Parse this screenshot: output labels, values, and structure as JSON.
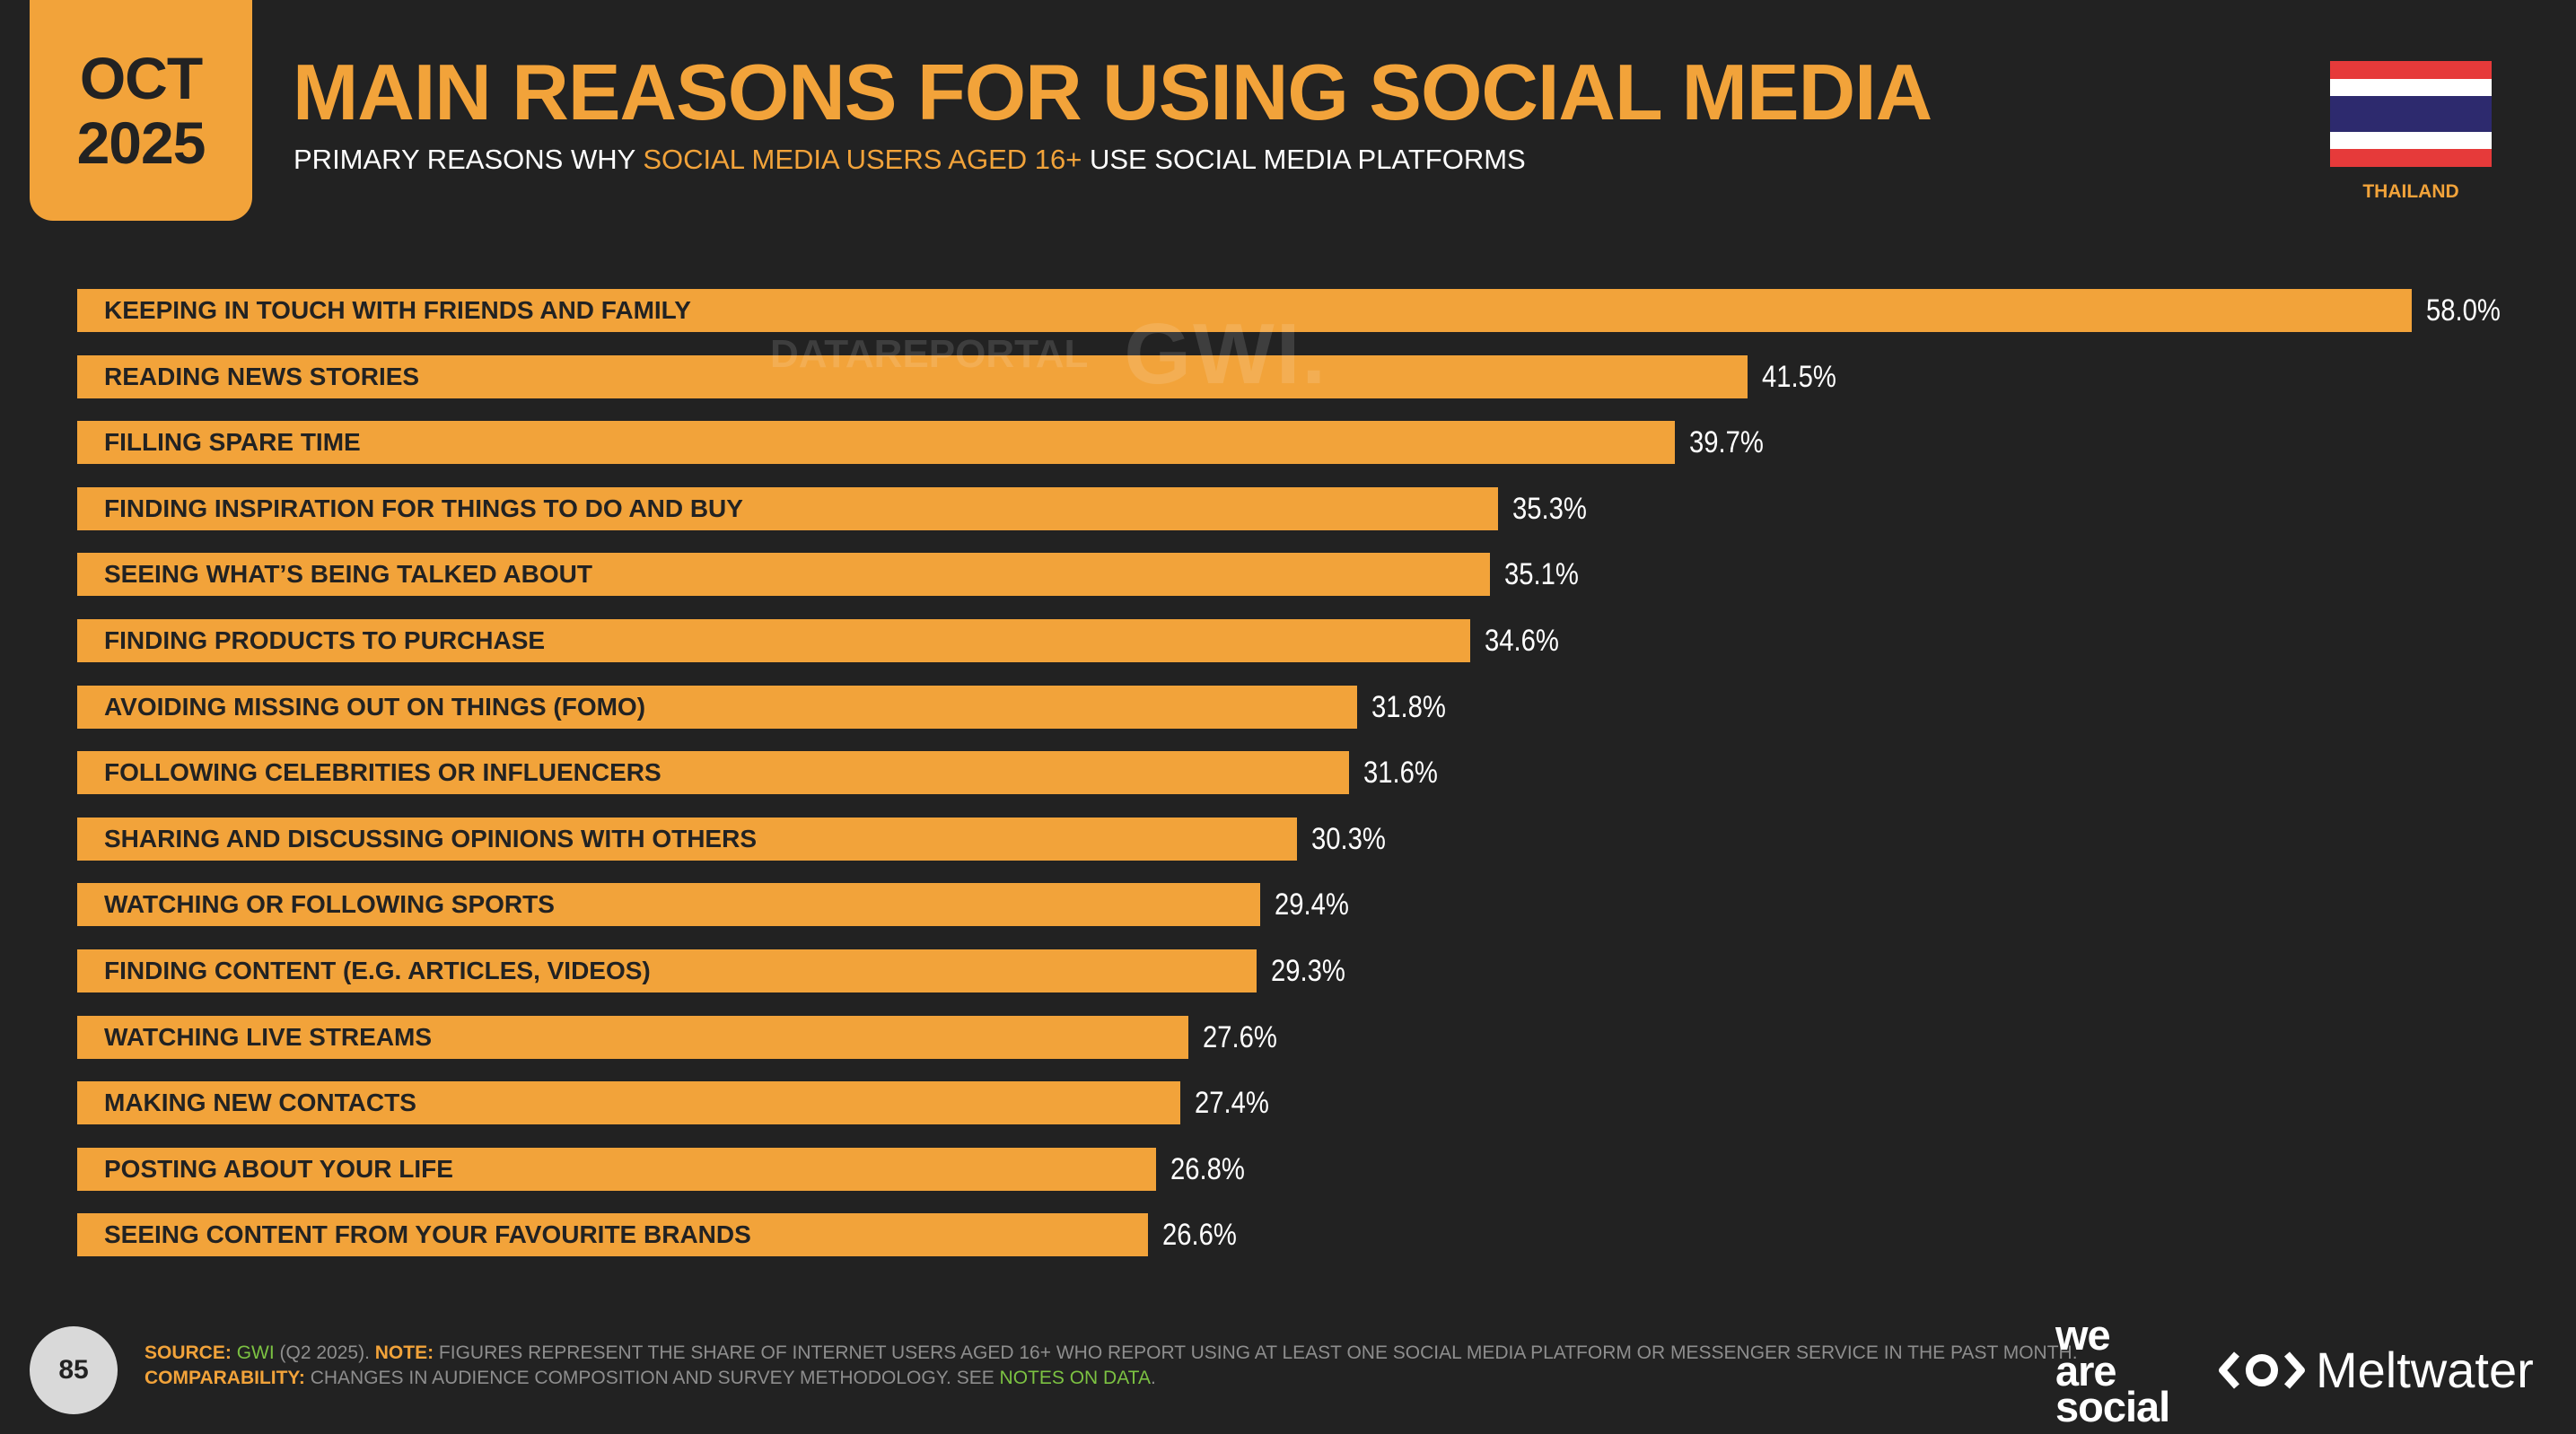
{
  "badge": {
    "month": "OCT",
    "year": "2025"
  },
  "header": {
    "title": "MAIN REASONS FOR USING SOCIAL MEDIA",
    "subtitle_pre": "PRIMARY REASONS WHY ",
    "subtitle_highlight": "SOCIAL MEDIA USERS AGED 16+",
    "subtitle_post": " USE SOCIAL MEDIA PLATFORMS"
  },
  "country": {
    "name": "THAILAND",
    "flag_colors": [
      "#e63a3a",
      "#ffffff",
      "#2d2a6e"
    ]
  },
  "watermark": {
    "brand1": "DATAREPORTAL",
    "brand2": "GWI."
  },
  "colors": {
    "accent": "#f2a33a",
    "background": "#222222"
  },
  "chart_data": {
    "type": "bar",
    "orientation": "horizontal",
    "categories": [
      "KEEPING IN TOUCH WITH FRIENDS AND FAMILY",
      "READING NEWS STORIES",
      "FILLING SPARE TIME",
      "FINDING INSPIRATION FOR THINGS TO DO AND BUY",
      "SEEING WHAT’S BEING TALKED ABOUT",
      "FINDING PRODUCTS TO PURCHASE",
      "AVOIDING MISSING OUT ON THINGS (FOMO)",
      "FOLLOWING CELEBRITIES OR INFLUENCERS",
      "SHARING AND DISCUSSING OPINIONS WITH OTHERS",
      "WATCHING OR FOLLOWING SPORTS",
      "FINDING CONTENT (E.G. ARTICLES, VIDEOS)",
      "WATCHING LIVE STREAMS",
      "MAKING NEW CONTACTS",
      "POSTING ABOUT YOUR LIFE",
      "SEEING CONTENT FROM YOUR FAVOURITE BRANDS"
    ],
    "values": [
      58.0,
      41.5,
      39.7,
      35.3,
      35.1,
      34.6,
      31.8,
      31.6,
      30.3,
      29.4,
      29.3,
      27.6,
      27.4,
      26.8,
      26.6
    ],
    "value_labels": [
      "58.0%",
      "41.5%",
      "39.7%",
      "35.3%",
      "35.1%",
      "34.6%",
      "31.8%",
      "31.6%",
      "30.3%",
      "29.4%",
      "29.3%",
      "27.6%",
      "27.4%",
      "26.8%",
      "26.6%"
    ],
    "title": "MAIN REASONS FOR USING SOCIAL MEDIA",
    "xlim": [
      0,
      58.0
    ],
    "grid": false
  },
  "footer": {
    "page_number": "85",
    "source_label": "SOURCE:",
    "source_gwi": "GWI",
    "source_text": " (Q2 2025). ",
    "note_label": "NOTE:",
    "note_text": " FIGURES REPRESENT THE SHARE OF INTERNET USERS AGED 16+ WHO REPORT USING AT LEAST ONE SOCIAL MEDIA PLATFORM OR MESSENGER SERVICE IN THE PAST MONTH.",
    "comparability_label": "COMPARABILITY:",
    "comparability_text": " CHANGES IN AUDIENCE COMPOSITION AND SURVEY METHODOLOGY. SEE ",
    "notes_link": "NOTES ON DATA",
    "period": ".",
    "logo1": [
      "we",
      "are",
      "social"
    ],
    "logo2": "Meltwater"
  }
}
